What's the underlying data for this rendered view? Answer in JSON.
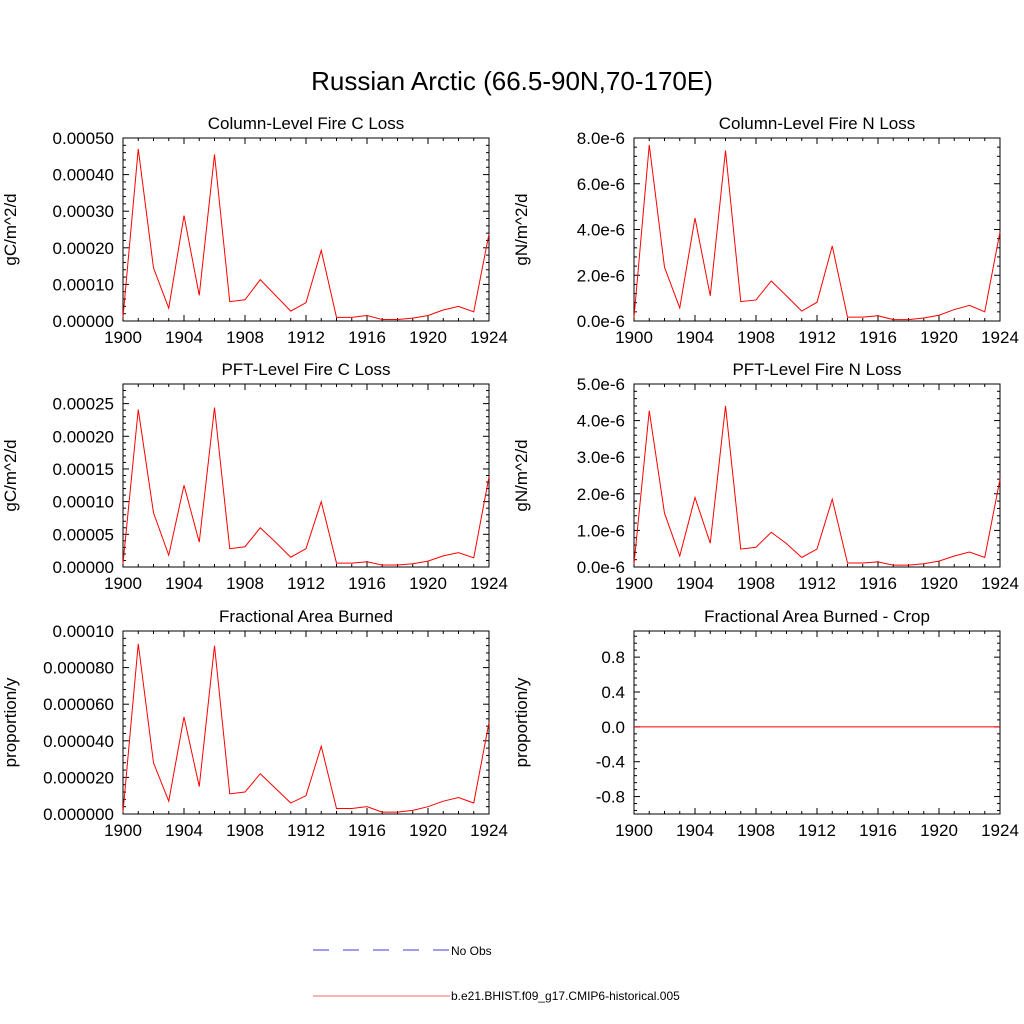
{
  "figure": {
    "title": "Russian Arctic (66.5-90N,70-170E)"
  },
  "legend": {
    "items": [
      {
        "label": "No Obs",
        "color": "#3b3bd6",
        "dash": true
      },
      {
        "label": "b.e21.BHIST.f09_g17.CMIP6-historical.005",
        "color": "#ff6666",
        "dash": false
      }
    ]
  },
  "chart_data": [
    {
      "type": "line",
      "title": "Column-Level Fire C Loss",
      "ylabel": "gC/m^2/d",
      "xlim": [
        1900,
        1924
      ],
      "xticks": [
        1900,
        1904,
        1908,
        1912,
        1916,
        1920,
        1924
      ],
      "ylim": [
        0,
        0.0005
      ],
      "yticks": [
        0,
        0.0001,
        0.0002,
        0.0003,
        0.0004,
        0.0005
      ],
      "ytick_labels": [
        "0.00000",
        "0.00010",
        "0.00020",
        "0.00030",
        "0.00040",
        "0.00050"
      ],
      "series": [
        {
          "color": "#ff0000",
          "x": [
            1900,
            1901,
            1902,
            1903,
            1904,
            1905,
            1906,
            1907,
            1908,
            1909,
            1910,
            1911,
            1912,
            1913,
            1914,
            1915,
            1916,
            1917,
            1918,
            1919,
            1920,
            1921,
            1922,
            1923,
            1924
          ],
          "values": [
            1e-05,
            0.00047,
            0.000145,
            3.5e-05,
            0.000288,
            7e-05,
            0.000455,
            5.3e-05,
            5.8e-05,
            0.000113,
            7e-05,
            2.7e-05,
            5e-05,
            0.000193,
            1e-05,
            1e-05,
            1.5e-05,
            4e-06,
            4e-06,
            8e-06,
            1.5e-05,
            3e-05,
            4e-05,
            2.5e-05,
            0.000238
          ]
        }
      ]
    },
    {
      "type": "line",
      "title": "Column-Level Fire N Loss",
      "ylabel": "gN/m^2/d",
      "xlim": [
        1900,
        1924
      ],
      "xticks": [
        1900,
        1904,
        1908,
        1912,
        1916,
        1920,
        1924
      ],
      "ylim": [
        0,
        8e-06
      ],
      "yticks": [
        0,
        2e-06,
        4e-06,
        6e-06,
        8e-06
      ],
      "ytick_labels": [
        "0.0e-6",
        "2.0e-6",
        "4.0e-6",
        "6.0e-6",
        "8.0e-6"
      ],
      "series": [
        {
          "color": "#ff0000",
          "x": [
            1900,
            1901,
            1902,
            1903,
            1904,
            1905,
            1906,
            1907,
            1908,
            1909,
            1910,
            1911,
            1912,
            1913,
            1914,
            1915,
            1916,
            1917,
            1918,
            1919,
            1920,
            1921,
            1922,
            1923,
            1924
          ],
          "values": [
            1.5e-07,
            7.7e-06,
            2.35e-06,
            5.7e-07,
            4.5e-06,
            1.1e-06,
            7.45e-06,
            8.5e-07,
            9.2e-07,
            1.75e-06,
            1.1e-06,
            4.3e-07,
            8.2e-07,
            3.28e-06,
            1.7e-07,
            1.7e-07,
            2.3e-07,
            6e-08,
            6e-08,
            1.3e-07,
            2.5e-07,
            5e-07,
            6.8e-07,
            4e-07,
            3.9e-06
          ]
        }
      ]
    },
    {
      "type": "line",
      "title": "PFT-Level Fire C Loss",
      "ylabel": "gC/m^2/d",
      "xlim": [
        1900,
        1924
      ],
      "xticks": [
        1900,
        1904,
        1908,
        1912,
        1916,
        1920,
        1924
      ],
      "ylim": [
        0,
        0.00028
      ],
      "yticks": [
        0,
        5e-05,
        0.0001,
        0.00015,
        0.0002,
        0.00025
      ],
      "ytick_labels": [
        "0.00000",
        "0.00005",
        "0.00010",
        "0.00015",
        "0.00020",
        "0.00025"
      ],
      "series": [
        {
          "color": "#ff0000",
          "x": [
            1900,
            1901,
            1902,
            1903,
            1904,
            1905,
            1906,
            1907,
            1908,
            1909,
            1910,
            1911,
            1912,
            1913,
            1914,
            1915,
            1916,
            1917,
            1918,
            1919,
            1920,
            1921,
            1922,
            1923,
            1924
          ],
          "values": [
            5e-06,
            0.000241,
            8.3e-05,
            1.8e-05,
            0.000125,
            3.8e-05,
            0.000244,
            2.8e-05,
            3.1e-05,
            6e-05,
            3.8e-05,
            1.5e-05,
            2.8e-05,
            0.0001,
            6e-06,
            6e-06,
            8e-06,
            3e-06,
            3e-06,
            5e-06,
            9e-06,
            1.7e-05,
            2.2e-05,
            1.4e-05,
            0.000138
          ]
        }
      ]
    },
    {
      "type": "line",
      "title": "PFT-Level Fire N Loss",
      "ylabel": "gN/m^2/d",
      "xlim": [
        1900,
        1924
      ],
      "xticks": [
        1900,
        1904,
        1908,
        1912,
        1916,
        1920,
        1924
      ],
      "ylim": [
        0,
        5e-06
      ],
      "yticks": [
        0,
        1e-06,
        2e-06,
        3e-06,
        4e-06,
        5e-06
      ],
      "ytick_labels": [
        "0.0e-6",
        "1.0e-6",
        "2.0e-6",
        "3.0e-6",
        "4.0e-6",
        "5.0e-6"
      ],
      "series": [
        {
          "color": "#ff0000",
          "x": [
            1900,
            1901,
            1902,
            1903,
            1904,
            1905,
            1906,
            1907,
            1908,
            1909,
            1910,
            1911,
            1912,
            1913,
            1914,
            1915,
            1916,
            1917,
            1918,
            1919,
            1920,
            1921,
            1922,
            1923,
            1924
          ],
          "values": [
            8e-08,
            4.27e-06,
            1.47e-06,
            3e-07,
            1.9e-06,
            6.5e-07,
            4.4e-06,
            4.9e-07,
            5.4e-07,
            9.5e-07,
            6.4e-07,
            2.6e-07,
            4.9e-07,
            1.85e-06,
            1.1e-07,
            1.1e-07,
            1.4e-07,
            5e-08,
            5e-08,
            9e-08,
            1.6e-07,
            3e-07,
            4.1e-07,
            2.6e-07,
            2.4e-06
          ]
        }
      ]
    },
    {
      "type": "line",
      "title": "Fractional Area Burned",
      "ylabel": "proportion/y",
      "xlim": [
        1900,
        1924
      ],
      "xticks": [
        1900,
        1904,
        1908,
        1912,
        1916,
        1920,
        1924
      ],
      "ylim": [
        0,
        0.0001
      ],
      "yticks": [
        0,
        2e-05,
        4e-05,
        6e-05,
        8e-05,
        0.0001
      ],
      "ytick_labels": [
        "0.000000",
        "0.000020",
        "0.000040",
        "0.000060",
        "0.000080",
        "0.00010"
      ],
      "series": [
        {
          "color": "#ff0000",
          "x": [
            1900,
            1901,
            1902,
            1903,
            1904,
            1905,
            1906,
            1907,
            1908,
            1909,
            1910,
            1911,
            1912,
            1913,
            1914,
            1915,
            1916,
            1917,
            1918,
            1919,
            1920,
            1921,
            1922,
            1923,
            1924
          ],
          "values": [
            1e-06,
            9.3e-05,
            2.8e-05,
            7e-06,
            5.3e-05,
            1.5e-05,
            9.2e-05,
            1.1e-05,
            1.2e-05,
            2.2e-05,
            1.4e-05,
            6e-06,
            1e-05,
            3.7e-05,
            3e-06,
            3e-06,
            4e-06,
            1e-06,
            1e-06,
            2e-06,
            4e-06,
            7e-06,
            9e-06,
            6e-06,
            5e-05
          ]
        }
      ]
    },
    {
      "type": "line",
      "title": "Fractional Area Burned - Crop",
      "ylabel": "proportion/y",
      "xlim": [
        1900,
        1924
      ],
      "xticks": [
        1900,
        1904,
        1908,
        1912,
        1916,
        1920,
        1924
      ],
      "ylim": [
        -1,
        1.1
      ],
      "yticks": [
        -0.8,
        -0.4,
        0,
        0.4,
        0.8
      ],
      "ytick_labels": [
        "-0.8",
        "-0.4",
        "0.0",
        "0.4",
        "0.8"
      ],
      "series": [
        {
          "color": "#ff0000",
          "x": [
            1900,
            1924
          ],
          "values": [
            0,
            0
          ]
        }
      ]
    }
  ]
}
